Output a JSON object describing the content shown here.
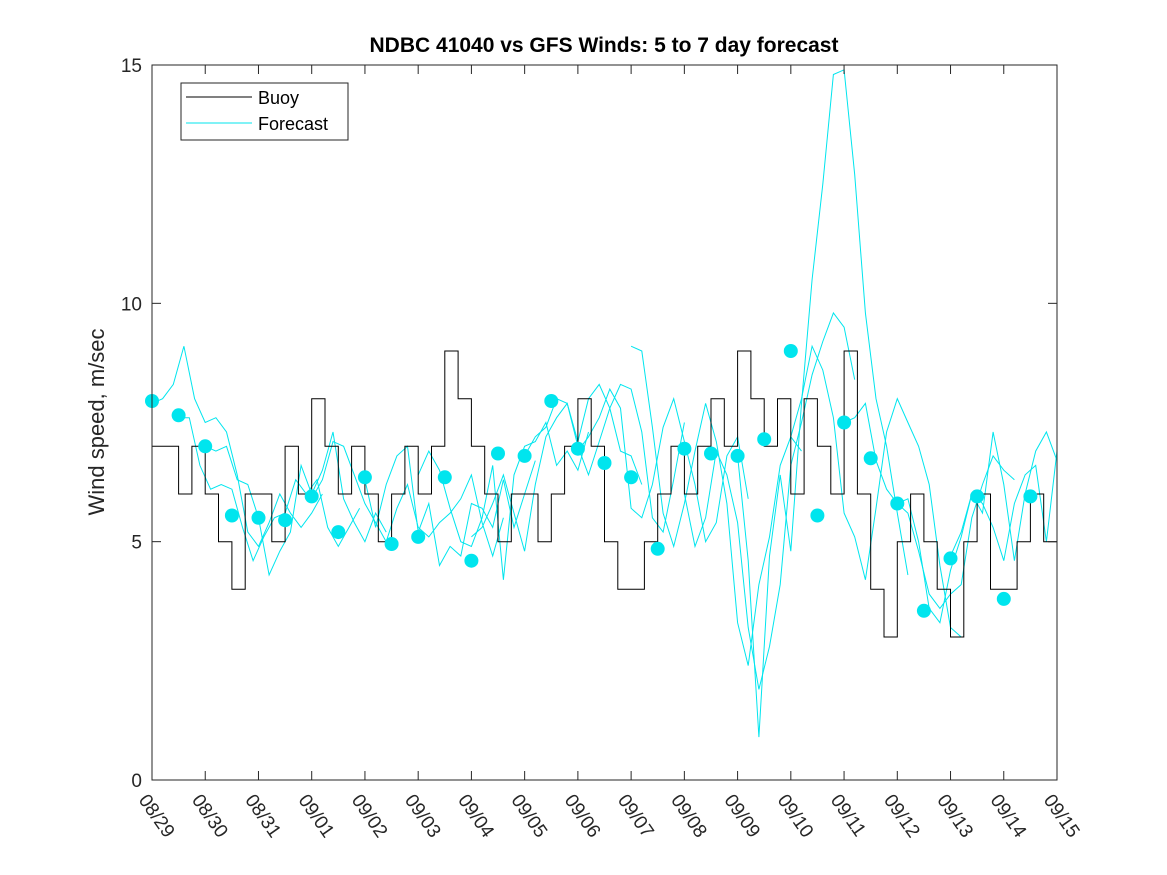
{
  "chart_data": {
    "type": "line",
    "title": "NDBC 41040 vs GFS Winds: 5 to 7 day forecast",
    "xlabel": "",
    "ylabel": "Wind speed, m/sec",
    "xlim": [
      0,
      17
    ],
    "ylim": [
      0,
      15
    ],
    "x_tick_labels": [
      "08/29",
      "08/30",
      "08/31",
      "09/01",
      "09/02",
      "09/03",
      "09/04",
      "09/05",
      "09/06",
      "09/07",
      "09/08",
      "09/09",
      "09/10",
      "09/11",
      "09/12",
      "09/13",
      "09/14",
      "09/15"
    ],
    "y_ticks": [
      0,
      5,
      10,
      15
    ],
    "legend": {
      "position": "top-left",
      "entries": [
        "Buoy",
        "Forecast"
      ]
    },
    "colors": {
      "buoy": "#000000",
      "forecast": "#00e5ee"
    },
    "buoy": {
      "name": "Buoy",
      "x": [
        0.0,
        0.25,
        0.5,
        0.75,
        1.0,
        1.25,
        1.5,
        1.75,
        2.0,
        2.25,
        2.5,
        2.75,
        3.0,
        3.25,
        3.5,
        3.75,
        4.0,
        4.25,
        4.5,
        4.75,
        5.0,
        5.25,
        5.5,
        5.75,
        6.0,
        6.25,
        6.5,
        6.75,
        7.0,
        7.25,
        7.5,
        7.75,
        8.0,
        8.25,
        8.5,
        8.75,
        9.0,
        9.25,
        9.5,
        9.75,
        10.0,
        10.25,
        10.5,
        10.75,
        11.0,
        11.25,
        11.5,
        11.75,
        12.0,
        12.25,
        12.5,
        12.75,
        13.0,
        13.25,
        13.5,
        13.75,
        14.0,
        14.25,
        14.5,
        14.75,
        15.0,
        15.25,
        15.5,
        15.75,
        16.0,
        16.25,
        16.5,
        16.75,
        17.0
      ],
      "values": [
        7,
        7,
        6,
        7,
        6,
        5,
        4,
        6,
        6,
        5,
        7,
        6,
        8,
        7,
        6,
        7,
        6,
        5,
        6,
        7,
        6,
        7,
        9,
        8,
        7,
        6,
        5,
        6,
        6,
        5,
        6,
        7,
        8,
        7,
        5,
        4,
        4,
        5,
        6,
        7,
        6,
        7,
        8,
        7,
        9,
        8,
        7,
        8,
        6,
        8,
        7,
        6,
        9,
        6,
        4,
        3,
        5,
        6,
        5,
        4,
        3,
        5,
        6,
        4,
        4,
        5,
        6,
        5,
        5
      ]
    },
    "forecast_runs": [
      {
        "name": "Forecast",
        "x": [
          0.0,
          0.2,
          0.4,
          0.6,
          0.8,
          1.0,
          1.2,
          1.4,
          1.6,
          1.8,
          2.0,
          2.2,
          2.4,
          2.6,
          2.8,
          3.0,
          3.2
        ],
        "values": [
          7.9,
          8.0,
          8.3,
          9.1,
          8.0,
          7.5,
          7.6,
          7.3,
          6.4,
          5.2,
          4.9,
          5.4,
          6.0,
          5.6,
          5.3,
          5.6,
          6.0
        ]
      },
      {
        "name": "Forecast",
        "x": [
          0.5,
          0.7,
          0.9,
          1.1,
          1.3,
          1.5,
          1.7,
          1.9,
          2.1,
          2.3,
          2.5,
          2.7,
          2.9,
          3.1,
          3.3,
          3.5,
          3.7,
          3.9
        ],
        "values": [
          7.6,
          7.6,
          6.6,
          6.1,
          6.2,
          6.1,
          5.3,
          4.6,
          5.1,
          5.5,
          5.6,
          6.3,
          6.0,
          6.3,
          5.3,
          4.9,
          5.3,
          5.7
        ]
      },
      {
        "name": "Forecast",
        "x": [
          1.0,
          1.2,
          1.4,
          1.6,
          1.8,
          2.0,
          2.2,
          2.4,
          2.6,
          2.8,
          3.0,
          3.2,
          3.4,
          3.6,
          3.8,
          4.0,
          4.2,
          4.4
        ],
        "values": [
          7.0,
          6.9,
          7.0,
          6.3,
          6.2,
          5.5,
          4.3,
          4.8,
          5.2,
          6.6,
          6.0,
          6.5,
          7.3,
          5.9,
          5.4,
          5.0,
          5.6,
          5.2
        ]
      },
      {
        "name": "Forecast",
        "x": [
          3.0,
          3.2,
          3.4,
          3.6,
          3.8,
          4.0,
          4.2,
          4.4,
          4.6,
          4.8,
          5.0,
          5.2,
          5.4,
          5.6,
          5.8,
          6.0,
          6.2,
          6.4,
          6.6
        ],
        "values": [
          5.9,
          6.3,
          7.1,
          7.0,
          6.4,
          5.8,
          5.4,
          5.0,
          5.7,
          6.2,
          5.3,
          5.1,
          5.4,
          5.6,
          5.9,
          6.4,
          5.4,
          4.7,
          5.5
        ]
      },
      {
        "name": "Forecast",
        "x": [
          4.0,
          4.2,
          4.4,
          4.6,
          4.8,
          5.0,
          5.2,
          5.4,
          5.6,
          5.8,
          6.0,
          6.2,
          6.4,
          6.6,
          6.8,
          7.0,
          7.2
        ],
        "values": [
          6.3,
          5.3,
          6.2,
          6.8,
          7.0,
          5.2,
          5.8,
          4.5,
          4.9,
          4.7,
          5.8,
          5.7,
          5.3,
          6.3,
          5.3,
          6.0,
          6.7
        ]
      },
      {
        "name": "Forecast",
        "x": [
          5.0,
          5.2,
          5.4,
          5.6,
          5.8,
          6.0,
          6.2,
          6.4,
          6.6,
          6.8,
          7.0,
          7.2,
          7.4,
          7.6,
          7.8,
          8.0,
          8.2
        ],
        "values": [
          6.4,
          6.9,
          6.5,
          5.7,
          5.0,
          4.9,
          5.5,
          6.6,
          4.2,
          6.4,
          7.0,
          7.1,
          7.5,
          6.6,
          6.9,
          6.5,
          7.3
        ]
      },
      {
        "name": "Forecast",
        "x": [
          6.0,
          6.2,
          6.4,
          6.6,
          6.8,
          7.0,
          7.2,
          7.4,
          7.6,
          7.8,
          8.0,
          8.2,
          8.4,
          8.6,
          8.8,
          9.0,
          9.2
        ],
        "values": [
          5.1,
          5.3,
          5.8,
          6.4,
          5.6,
          4.8,
          6.2,
          7.2,
          7.6,
          7.9,
          7.1,
          8.0,
          8.3,
          7.8,
          6.9,
          6.8,
          6.2
        ]
      },
      {
        "name": "Forecast",
        "x": [
          7.0,
          7.2,
          7.4,
          7.6,
          7.8,
          8.0,
          8.2,
          8.4,
          8.6,
          8.8,
          9.0,
          9.2,
          9.4,
          9.6,
          9.8,
          10.0
        ],
        "values": [
          6.8,
          7.2,
          7.4,
          8.0,
          7.9,
          7.0,
          6.4,
          7.1,
          7.8,
          8.3,
          8.2,
          7.3,
          5.5,
          5.2,
          6.3,
          7.5
        ]
      },
      {
        "name": "Forecast",
        "x": [
          8.0,
          8.2,
          8.4,
          8.6,
          8.8,
          9.0,
          9.2,
          9.4,
          9.6,
          9.8,
          10.0,
          10.2,
          10.4,
          10.6,
          10.8,
          11.0,
          11.2
        ],
        "values": [
          6.9,
          7.2,
          7.6,
          8.2,
          7.8,
          5.7,
          5.5,
          6.2,
          7.4,
          8.0,
          7.1,
          6.2,
          5.0,
          5.4,
          6.8,
          7.2,
          5.9
        ]
      },
      {
        "name": "Forecast",
        "x": [
          9.0,
          9.2,
          9.4,
          9.6,
          9.8,
          10.0,
          10.2,
          10.4,
          10.6,
          10.8,
          11.0,
          11.2,
          11.4,
          11.6,
          11.8,
          12.0,
          12.2
        ],
        "values": [
          9.1,
          9.0,
          7.4,
          5.6,
          4.9,
          5.8,
          6.9,
          7.9,
          7.1,
          5.8,
          3.3,
          2.4,
          4.1,
          5.1,
          6.6,
          7.2,
          6.9
        ]
      },
      {
        "name": "Forecast",
        "x": [
          10.0,
          10.2,
          10.4,
          10.6,
          10.8,
          11.0,
          11.2,
          11.4,
          11.6,
          11.8,
          12.0,
          12.2,
          12.4,
          12.6,
          12.8,
          13.0,
          13.2
        ],
        "values": [
          6.0,
          4.9,
          5.5,
          6.9,
          6.4,
          5.4,
          3.2,
          1.9,
          2.8,
          4.1,
          6.6,
          7.5,
          8.5,
          9.2,
          9.8,
          9.5,
          8.4
        ]
      },
      {
        "name": "Forecast",
        "x": [
          11.0,
          11.2,
          11.4,
          11.6,
          11.8,
          12.0,
          12.2,
          12.4,
          12.6,
          12.8,
          13.0,
          13.2,
          13.4,
          13.6,
          13.8,
          14.0,
          14.2
        ],
        "values": [
          6.8,
          4.6,
          0.9,
          4.7,
          6.4,
          4.8,
          7.9,
          10.5,
          12.5,
          14.8,
          14.9,
          12.7,
          9.8,
          8.0,
          7.0,
          5.6,
          4.3
        ]
      },
      {
        "name": "Forecast",
        "x": [
          12.0,
          12.2,
          12.4,
          12.6,
          12.8,
          13.0,
          13.2,
          13.4,
          13.6,
          13.8,
          14.0,
          14.2,
          14.4,
          14.6,
          14.8,
          15.0,
          15.2
        ],
        "values": [
          7.2,
          8.0,
          9.1,
          8.6,
          7.6,
          5.6,
          5.1,
          4.2,
          5.7,
          7.3,
          8.0,
          7.5,
          7.0,
          6.2,
          4.5,
          3.2,
          3.0
        ]
      },
      {
        "name": "Forecast",
        "x": [
          13.0,
          13.2,
          13.4,
          13.6,
          13.8,
          14.0,
          14.2,
          14.4,
          14.6,
          14.8,
          15.0,
          15.2,
          15.4,
          15.6,
          15.8,
          16.0,
          16.2
        ],
        "values": [
          7.5,
          7.6,
          7.9,
          6.7,
          6.1,
          5.8,
          5.6,
          4.8,
          3.9,
          3.6,
          3.9,
          4.1,
          5.5,
          6.2,
          6.8,
          6.5,
          6.3
        ]
      },
      {
        "name": "Forecast",
        "x": [
          14.0,
          14.2,
          14.4,
          14.6,
          14.8,
          15.0,
          15.2,
          15.4,
          15.6,
          15.8,
          16.0,
          16.2,
          16.4,
          16.6,
          16.8,
          17.0
        ],
        "values": [
          5.8,
          5.9,
          5.0,
          3.6,
          3.3,
          4.4,
          5.1,
          6.0,
          5.6,
          7.3,
          6.2,
          4.6,
          6.0,
          6.9,
          7.3,
          6.7
        ]
      },
      {
        "name": "Forecast",
        "x": [
          15.0,
          15.2,
          15.4,
          15.6,
          15.8,
          16.0,
          16.2,
          16.4,
          16.6,
          16.8,
          17.0
        ],
        "values": [
          4.7,
          5.2,
          6.0,
          5.8,
          5.3,
          4.6,
          5.8,
          6.4,
          6.6,
          5.0,
          6.9
        ]
      }
    ],
    "forecast_markers": {
      "x": [
        0.0,
        0.5,
        1.0,
        1.5,
        2.0,
        2.5,
        3.0,
        3.5,
        4.0,
        4.5,
        5.0,
        5.5,
        6.0,
        6.5,
        7.0,
        7.5,
        8.0,
        8.5,
        9.0,
        9.5,
        10.0,
        10.5,
        11.0,
        11.5,
        12.0,
        12.5,
        13.0,
        13.5,
        14.0,
        14.5,
        15.0,
        15.5,
        16.0,
        16.5
      ],
      "values": [
        7.95,
        7.65,
        7.0,
        5.55,
        5.5,
        5.45,
        5.95,
        5.2,
        6.35,
        4.95,
        5.1,
        6.35,
        4.6,
        6.85,
        6.8,
        7.95,
        6.95,
        6.65,
        6.35,
        4.85,
        6.95,
        6.85,
        6.8,
        7.15,
        9.0,
        5.55,
        7.5,
        6.75,
        5.8,
        3.55,
        4.65,
        5.95,
        3.8,
        5.95
      ]
    }
  }
}
